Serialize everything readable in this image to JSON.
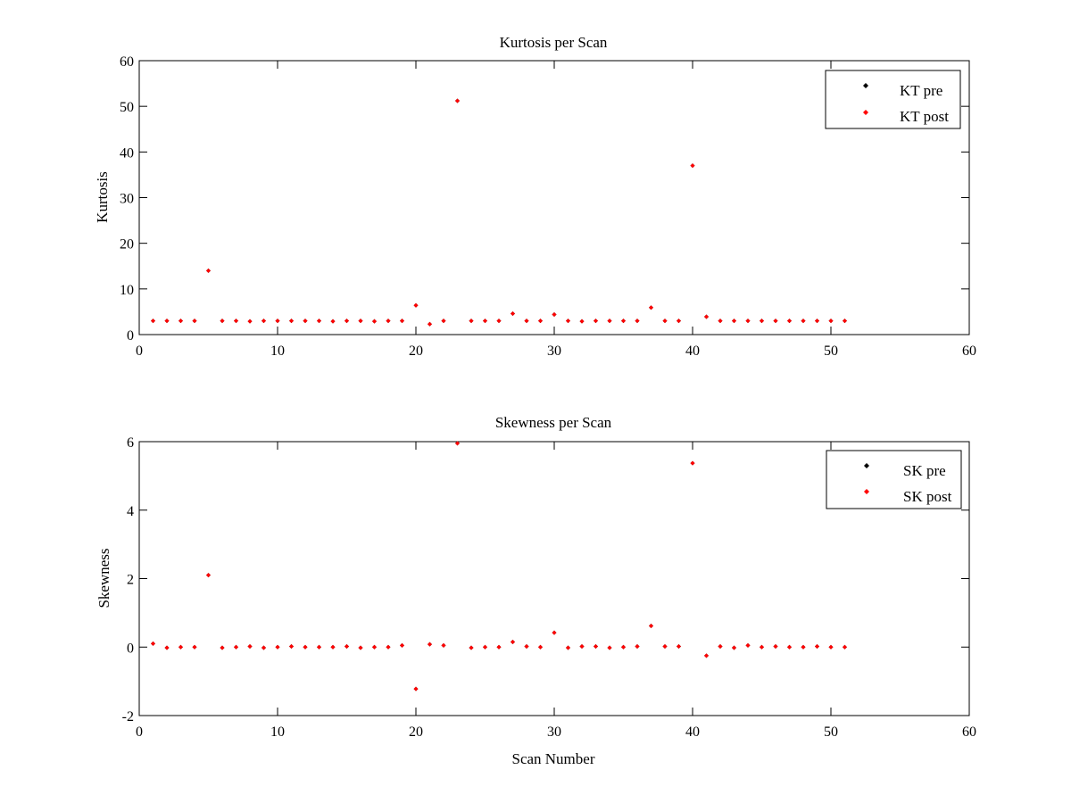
{
  "chart_data": [
    {
      "type": "scatter",
      "title": "Kurtosis per Scan",
      "xlabel": "",
      "ylabel": "Kurtosis",
      "xlim": [
        0,
        60
      ],
      "ylim": [
        0,
        60
      ],
      "xticks": [
        0,
        10,
        20,
        30,
        40,
        50,
        60
      ],
      "yticks": [
        0,
        10,
        20,
        30,
        40,
        50,
        60
      ],
      "legend_position": "top-right",
      "x": [
        1,
        2,
        3,
        4,
        5,
        6,
        7,
        8,
        9,
        10,
        11,
        12,
        13,
        14,
        15,
        16,
        17,
        18,
        19,
        20,
        21,
        22,
        23,
        24,
        25,
        26,
        27,
        28,
        29,
        30,
        31,
        32,
        33,
        34,
        35,
        36,
        37,
        38,
        39,
        40,
        41,
        42,
        43,
        44,
        45,
        46,
        47,
        48,
        49,
        50,
        51
      ],
      "series": [
        {
          "name": "KT pre",
          "color": "#000000",
          "values": [
            3.0,
            3.0,
            3.0,
            3.0,
            14.0,
            3.0,
            3.0,
            2.9,
            3.0,
            3.0,
            3.0,
            3.0,
            3.0,
            2.9,
            3.0,
            3.0,
            2.9,
            3.0,
            3.0,
            6.4,
            2.3,
            3.0,
            51.2,
            3.0,
            3.0,
            3.0,
            4.6,
            3.0,
            3.0,
            4.4,
            3.0,
            2.9,
            3.0,
            3.0,
            3.0,
            3.0,
            5.9,
            3.0,
            3.0,
            37.0,
            3.9,
            3.0,
            3.0,
            3.0,
            3.0,
            3.0,
            3.0,
            3.0,
            3.0,
            3.0,
            3.0
          ]
        },
        {
          "name": "KT post",
          "color": "#ff0000",
          "values": [
            3.0,
            3.0,
            3.0,
            3.0,
            14.0,
            3.0,
            3.0,
            2.9,
            3.0,
            3.0,
            3.0,
            3.0,
            3.0,
            2.9,
            3.0,
            3.0,
            2.9,
            3.0,
            3.0,
            6.4,
            2.3,
            3.0,
            51.2,
            3.0,
            3.0,
            3.0,
            4.6,
            3.0,
            3.0,
            4.4,
            3.0,
            2.9,
            3.0,
            3.0,
            3.0,
            3.0,
            5.9,
            3.0,
            3.0,
            37.0,
            3.9,
            3.0,
            3.0,
            3.0,
            3.0,
            3.0,
            3.0,
            3.0,
            3.0,
            3.0,
            3.0
          ]
        }
      ]
    },
    {
      "type": "scatter",
      "title": "Skewness per Scan",
      "xlabel": "Scan Number",
      "ylabel": "Skewness",
      "xlim": [
        0,
        60
      ],
      "ylim": [
        -2,
        6
      ],
      "xticks": [
        0,
        10,
        20,
        30,
        40,
        50,
        60
      ],
      "yticks": [
        -2,
        0,
        2,
        4,
        6
      ],
      "legend_position": "top-right",
      "x": [
        1,
        2,
        3,
        4,
        5,
        6,
        7,
        8,
        9,
        10,
        11,
        12,
        13,
        14,
        15,
        16,
        17,
        18,
        19,
        20,
        21,
        22,
        23,
        24,
        25,
        26,
        27,
        28,
        29,
        30,
        31,
        32,
        33,
        34,
        35,
        36,
        37,
        38,
        39,
        40,
        41,
        42,
        43,
        44,
        45,
        46,
        47,
        48,
        49,
        50,
        51
      ],
      "series": [
        {
          "name": "SK pre",
          "color": "#000000",
          "values": [
            0.1,
            -0.02,
            0.0,
            0.0,
            2.1,
            -0.02,
            0.0,
            0.02,
            -0.02,
            0.0,
            0.02,
            0.0,
            0.0,
            0.0,
            0.02,
            -0.02,
            0.0,
            0.0,
            0.05,
            -1.22,
            0.08,
            0.05,
            5.95,
            -0.02,
            0.0,
            0.0,
            0.15,
            0.02,
            0.0,
            0.42,
            -0.02,
            0.02,
            0.02,
            -0.02,
            0.0,
            0.02,
            0.62,
            0.02,
            0.02,
            5.37,
            -0.25,
            0.02,
            -0.02,
            0.05,
            0.0,
            0.02,
            0.0,
            0.0,
            0.02,
            0.0,
            0.0
          ]
        },
        {
          "name": "SK post",
          "color": "#ff0000",
          "values": [
            0.1,
            -0.02,
            0.0,
            0.0,
            2.1,
            -0.02,
            0.0,
            0.02,
            -0.02,
            0.0,
            0.02,
            0.0,
            0.0,
            0.0,
            0.02,
            -0.02,
            0.0,
            0.0,
            0.05,
            -1.22,
            0.08,
            0.05,
            5.95,
            -0.02,
            0.0,
            0.0,
            0.15,
            0.02,
            0.0,
            0.42,
            -0.02,
            0.02,
            0.02,
            -0.02,
            0.0,
            0.02,
            0.62,
            0.02,
            0.02,
            5.37,
            -0.25,
            0.02,
            -0.02,
            0.05,
            0.0,
            0.02,
            0.0,
            0.0,
            0.02,
            0.0,
            0.0
          ]
        }
      ]
    }
  ]
}
